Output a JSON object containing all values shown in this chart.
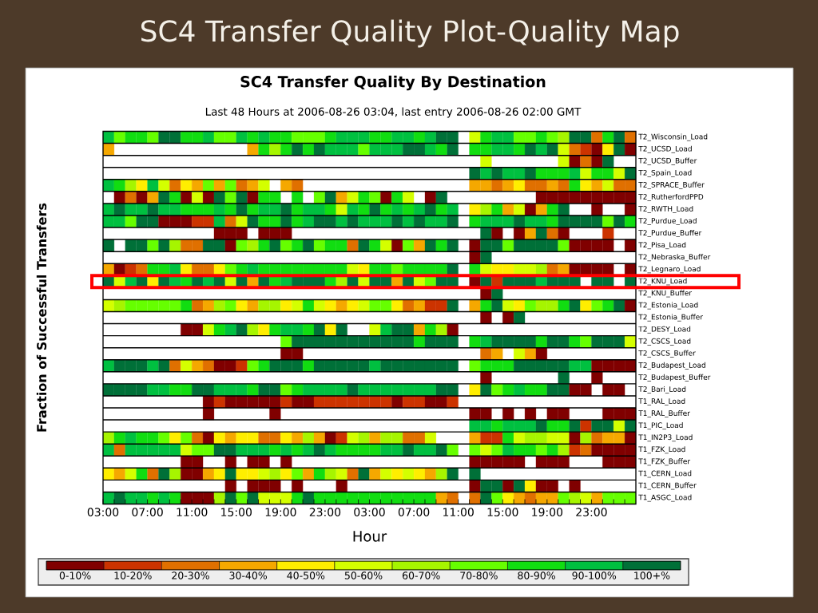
{
  "chart_data": {
    "type": "heatmap",
    "title": "SC4 Transfer Quality Plot-Quality Map",
    "subtitle": "SC4 Transfer Quality By Destination",
    "annotations": [
      "Last 48 Hours at 2006-08-26 03:04, last entry 2006-08-26 02:00 GMT"
    ],
    "xlabel": "Hour",
    "ylabel": "Fraction of Successful Transfers",
    "x": [
      "2006-08-24T03:30",
      "2006-08-24T04:30",
      "2006-08-24T05:30",
      "2006-08-24T06:30",
      "2006-08-24T07:30",
      "2006-08-24T08:30",
      "2006-08-24T09:30",
      "2006-08-24T10:30",
      "2006-08-24T11:30",
      "2006-08-24T12:30",
      "2006-08-24T13:30",
      "2006-08-24T14:30",
      "2006-08-24T15:30",
      "2006-08-24T16:30",
      "2006-08-24T17:30",
      "2006-08-24T18:30",
      "2006-08-24T19:30",
      "2006-08-24T20:30",
      "2006-08-24T21:30",
      "2006-08-24T22:30",
      "2006-08-24T23:30",
      "2006-08-25T00:30",
      "2006-08-25T01:30",
      "2006-08-25T02:30",
      "2006-08-25T03:30",
      "2006-08-25T04:30",
      "2006-08-25T05:30",
      "2006-08-25T06:30",
      "2006-08-25T07:30",
      "2006-08-25T08:30",
      "2006-08-25T09:30",
      "2006-08-25T10:30",
      "2006-08-25T11:30",
      "2006-08-25T12:30",
      "2006-08-25T13:30",
      "2006-08-25T14:30",
      "2006-08-25T15:30",
      "2006-08-25T16:30",
      "2006-08-25T17:30",
      "2006-08-25T18:30",
      "2006-08-25T19:30",
      "2006-08-25T20:30",
      "2006-08-25T21:30",
      "2006-08-25T22:30",
      "2006-08-25T23:30",
      "2006-08-26T00:30",
      "2006-08-26T01:30",
      "2006-08-26T02:30"
    ],
    "xlim": [
      "2006-08-24T03:00",
      "2006-08-26T03:00"
    ],
    "xticks": [
      {
        "value": "2006-08-24T03:00",
        "label": "03:00"
      },
      {
        "value": "2006-08-24T04:00",
        "label": null
      },
      {
        "value": "2006-08-24T05:00",
        "label": null
      },
      {
        "value": "2006-08-24T06:00",
        "label": null
      },
      {
        "value": "2006-08-24T07:00",
        "label": "07:00"
      },
      {
        "value": "2006-08-24T08:00",
        "label": null
      },
      {
        "value": "2006-08-24T09:00",
        "label": null
      },
      {
        "value": "2006-08-24T10:00",
        "label": null
      },
      {
        "value": "2006-08-24T11:00",
        "label": "11:00"
      },
      {
        "value": "2006-08-24T12:00",
        "label": null
      },
      {
        "value": "2006-08-24T13:00",
        "label": null
      },
      {
        "value": "2006-08-24T14:00",
        "label": null
      },
      {
        "value": "2006-08-24T15:00",
        "label": "15:00"
      },
      {
        "value": "2006-08-24T16:00",
        "label": null
      },
      {
        "value": "2006-08-24T17:00",
        "label": null
      },
      {
        "value": "2006-08-24T18:00",
        "label": null
      },
      {
        "value": "2006-08-24T19:00",
        "label": "19:00"
      },
      {
        "value": "2006-08-24T20:00",
        "label": null
      },
      {
        "value": "2006-08-24T21:00",
        "label": null
      },
      {
        "value": "2006-08-24T22:00",
        "label": null
      },
      {
        "value": "2006-08-24T23:00",
        "label": "23:00"
      },
      {
        "value": "2006-08-25T00:00",
        "label": null
      },
      {
        "value": "2006-08-25T01:00",
        "label": null
      },
      {
        "value": "2006-08-25T02:00",
        "label": null
      },
      {
        "value": "2006-08-25T03:00",
        "label": "03:00"
      },
      {
        "value": "2006-08-25T04:00",
        "label": null
      },
      {
        "value": "2006-08-25T05:00",
        "label": null
      },
      {
        "value": "2006-08-25T06:00",
        "label": null
      },
      {
        "value": "2006-08-25T07:00",
        "label": "07:00"
      },
      {
        "value": "2006-08-25T08:00",
        "label": null
      },
      {
        "value": "2006-08-25T09:00",
        "label": null
      },
      {
        "value": "2006-08-25T10:00",
        "label": null
      },
      {
        "value": "2006-08-25T11:00",
        "label": "11:00"
      },
      {
        "value": "2006-08-25T12:00",
        "label": null
      },
      {
        "value": "2006-08-25T13:00",
        "label": null
      },
      {
        "value": "2006-08-25T14:00",
        "label": null
      },
      {
        "value": "2006-08-25T15:00",
        "label": "15:00"
      },
      {
        "value": "2006-08-25T16:00",
        "label": null
      },
      {
        "value": "2006-08-25T17:00",
        "label": null
      },
      {
        "value": "2006-08-25T18:00",
        "label": null
      },
      {
        "value": "2006-08-25T19:00",
        "label": "19:00"
      },
      {
        "value": "2006-08-25T20:00",
        "label": null
      },
      {
        "value": "2006-08-25T21:00",
        "label": null
      },
      {
        "value": "2006-08-25T22:00",
        "label": null
      },
      {
        "value": "2006-08-25T23:00",
        "label": "23:00"
      },
      {
        "value": "2006-08-26T00:00",
        "label": null
      },
      {
        "value": "2006-08-26T01:00",
        "label": null
      },
      {
        "value": "2006-08-26T02:00",
        "label": null
      }
    ],
    "y_categories": [
      "T2_Wisconsin_Load",
      "T2_UCSD_Load",
      "T2_UCSD_Buffer",
      "T2_Spain_Load",
      "T2_SPRACE_Buffer",
      "T2_RutherfordPPD",
      "T2_RWTH_Load",
      "T2_Purdue_Load",
      "T2_Purdue_Buffer",
      "T2_Pisa_Load",
      "T2_Nebraska_Buffer",
      "T2_Legnaro_Load",
      "T2_KNU_Load",
      "T2_KNU_Buffer",
      "T2_Estonia_Load",
      "T2_Estonia_Buffer",
      "T2_DESY_Load",
      "T2_CSCS_Load",
      "T2_CSCS_Buffer",
      "T2_Budapest_Load",
      "T2_Budapest_Buffer",
      "T2_Bari_Load",
      "T1_RAL_Load",
      "T1_RAL_Buffer",
      "T1_PIC_Load",
      "T1_IN2P3_Load",
      "T1_FZK_Load",
      "T1_FZK_Buffer",
      "T1_CERN_Load",
      "T1_CERN_Buffer",
      "T1_ASGC_Load"
    ],
    "cells": [
      [
        95,
        75,
        85,
        85,
        75,
        105,
        105,
        85,
        85,
        95,
        75,
        75,
        95,
        85,
        95,
        85,
        85,
        75,
        75,
        75,
        85,
        95,
        95,
        95,
        85,
        85,
        95,
        95,
        85,
        95,
        105,
        105,
        null,
        55,
        85,
        95,
        95,
        75,
        75,
        85,
        75,
        65,
        105,
        105,
        25,
        85,
        105,
        25
      ],
      [
        35,
        null,
        null,
        null,
        null,
        null,
        null,
        null,
        null,
        null,
        null,
        null,
        null,
        35,
        85,
        65,
        85,
        105,
        85,
        105,
        95,
        95,
        95,
        75,
        95,
        95,
        95,
        105,
        105,
        95,
        85,
        105,
        null,
        85,
        85,
        95,
        95,
        85,
        105,
        95,
        105,
        55,
        25,
        15,
        5,
        45,
        105,
        5
      ],
      [
        null,
        null,
        null,
        null,
        null,
        null,
        null,
        null,
        null,
        null,
        null,
        null,
        null,
        null,
        null,
        null,
        null,
        null,
        null,
        null,
        null,
        null,
        null,
        null,
        null,
        null,
        null,
        null,
        null,
        null,
        null,
        null,
        null,
        null,
        55,
        null,
        null,
        null,
        null,
        null,
        null,
        55,
        5,
        25,
        5,
        105,
        null,
        null
      ],
      [
        null,
        null,
        null,
        null,
        null,
        null,
        null,
        null,
        null,
        null,
        null,
        null,
        null,
        null,
        null,
        null,
        null,
        null,
        null,
        null,
        null,
        null,
        null,
        null,
        null,
        null,
        null,
        null,
        null,
        null,
        null,
        null,
        null,
        105,
        95,
        105,
        95,
        95,
        105,
        85,
        85,
        85,
        95,
        55,
        85,
        85,
        55,
        105
      ],
      [
        95,
        85,
        65,
        45,
        95,
        55,
        25,
        45,
        35,
        75,
        35,
        75,
        25,
        35,
        55,
        null,
        35,
        25,
        null,
        null,
        null,
        null,
        null,
        null,
        null,
        null,
        null,
        null,
        null,
        null,
        null,
        null,
        null,
        35,
        35,
        25,
        35,
        45,
        25,
        25,
        35,
        25,
        85,
        45,
        35,
        55,
        25,
        25
      ],
      [
        null,
        5,
        25,
        5,
        35,
        105,
        85,
        5,
        55,
        5,
        105,
        75,
        105,
        5,
        85,
        85,
        null,
        85,
        null,
        75,
        105,
        35,
        55,
        85,
        75,
        5,
        85,
        55,
        null,
        5,
        105,
        null,
        null,
        null,
        null,
        null,
        null,
        null,
        null,
        5,
        5,
        5,
        5,
        5,
        5,
        5,
        5,
        5
      ],
      [
        95,
        105,
        95,
        95,
        105,
        95,
        95,
        85,
        85,
        85,
        95,
        85,
        105,
        85,
        95,
        95,
        105,
        85,
        95,
        95,
        85,
        55,
        95,
        85,
        105,
        85,
        95,
        85,
        95,
        105,
        85,
        95,
        null,
        45,
        65,
        85,
        35,
        55,
        5,
        35,
        85,
        105,
        null,
        null,
        5,
        null,
        null,
        5
      ],
      [
        95,
        95,
        75,
        105,
        105,
        5,
        5,
        5,
        15,
        15,
        95,
        25,
        55,
        105,
        85,
        85,
        105,
        85,
        95,
        105,
        105,
        95,
        105,
        95,
        95,
        95,
        105,
        95,
        105,
        95,
        95,
        105,
        null,
        85,
        95,
        95,
        95,
        105,
        95,
        95,
        85,
        105,
        105,
        105,
        105,
        75,
        105,
        85
      ],
      [
        null,
        null,
        null,
        null,
        null,
        null,
        null,
        null,
        null,
        null,
        5,
        5,
        5,
        null,
        5,
        5,
        5,
        null,
        null,
        null,
        null,
        null,
        null,
        null,
        null,
        null,
        null,
        null,
        null,
        null,
        null,
        null,
        null,
        null,
        105,
        5,
        null,
        5,
        35,
        105,
        25,
        5,
        null,
        null,
        null,
        15,
        null,
        null
      ],
      [
        105,
        null,
        105,
        105,
        75,
        105,
        65,
        25,
        25,
        105,
        105,
        5,
        75,
        65,
        85,
        105,
        75,
        85,
        105,
        75,
        85,
        85,
        25,
        105,
        85,
        55,
        5,
        75,
        35,
        105,
        85,
        105,
        null,
        5,
        105,
        105,
        75,
        105,
        105,
        105,
        105,
        75,
        5,
        5,
        5,
        5,
        null,
        5
      ],
      [
        null,
        null,
        null,
        null,
        null,
        null,
        null,
        null,
        null,
        null,
        null,
        null,
        null,
        null,
        null,
        null,
        null,
        null,
        null,
        null,
        null,
        null,
        null,
        null,
        null,
        null,
        null,
        null,
        null,
        null,
        null,
        null,
        null,
        5,
        105,
        null,
        null,
        null,
        null,
        null,
        null,
        null,
        null,
        null,
        null,
        null,
        null,
        null
      ],
      [
        35,
        5,
        15,
        25,
        85,
        85,
        95,
        45,
        25,
        25,
        45,
        75,
        85,
        95,
        85,
        85,
        85,
        85,
        85,
        85,
        85,
        85,
        55,
        45,
        85,
        85,
        75,
        85,
        85,
        85,
        85,
        105,
        null,
        85,
        55,
        45,
        45,
        55,
        55,
        65,
        25,
        35,
        5,
        5,
        5,
        5,
        null,
        5
      ],
      [
        105,
        55,
        95,
        105,
        45,
        105,
        95,
        85,
        105,
        95,
        105,
        55,
        105,
        35,
        105,
        85,
        95,
        105,
        105,
        105,
        85,
        65,
        105,
        55,
        105,
        105,
        35,
        105,
        55,
        75,
        105,
        105,
        null,
        5,
        105,
        15,
        105,
        105,
        105,
        95,
        105,
        105,
        105,
        null,
        105,
        105,
        null,
        105
      ],
      [
        null,
        null,
        null,
        null,
        null,
        null,
        null,
        null,
        null,
        null,
        null,
        null,
        null,
        null,
        null,
        null,
        null,
        null,
        null,
        null,
        null,
        null,
        null,
        null,
        null,
        null,
        null,
        null,
        null,
        null,
        null,
        null,
        null,
        null,
        5,
        105,
        null,
        null,
        null,
        null,
        null,
        null,
        null,
        null,
        null,
        null,
        null,
        null
      ],
      [
        55,
        65,
        75,
        75,
        75,
        75,
        75,
        85,
        25,
        35,
        65,
        75,
        45,
        35,
        65,
        65,
        45,
        55,
        85,
        55,
        45,
        35,
        45,
        55,
        75,
        75,
        45,
        25,
        35,
        15,
        15,
        105,
        null,
        35,
        85,
        105,
        55,
        45,
        75,
        65,
        65,
        85,
        105,
        45,
        75,
        85,
        105,
        5
      ],
      [
        null,
        null,
        null,
        null,
        null,
        null,
        null,
        null,
        null,
        null,
        null,
        null,
        null,
        null,
        null,
        null,
        null,
        null,
        null,
        null,
        null,
        null,
        null,
        null,
        null,
        null,
        null,
        null,
        null,
        null,
        null,
        null,
        null,
        null,
        5,
        null,
        5,
        105,
        null,
        null,
        null,
        null,
        null,
        null,
        null,
        null,
        null,
        null
      ],
      [
        null,
        null,
        null,
        null,
        null,
        null,
        null,
        5,
        5,
        55,
        85,
        95,
        105,
        65,
        45,
        85,
        95,
        95,
        85,
        105,
        45,
        105,
        null,
        null,
        55,
        95,
        105,
        105,
        35,
        85,
        65,
        5,
        null,
        null,
        null,
        null,
        null,
        null,
        null,
        null,
        null,
        null,
        null,
        null,
        null,
        null,
        null,
        null
      ],
      [
        null,
        null,
        null,
        null,
        null,
        null,
        null,
        null,
        null,
        null,
        null,
        null,
        null,
        null,
        null,
        null,
        75,
        105,
        105,
        105,
        105,
        105,
        105,
        105,
        105,
        105,
        105,
        105,
        85,
        105,
        105,
        105,
        null,
        85,
        95,
        105,
        105,
        105,
        105,
        85,
        105,
        105,
        85,
        75,
        105,
        105,
        105,
        55
      ],
      [
        null,
        null,
        null,
        null,
        null,
        null,
        null,
        null,
        null,
        null,
        null,
        null,
        null,
        null,
        null,
        null,
        5,
        5,
        null,
        null,
        null,
        null,
        null,
        null,
        null,
        null,
        null,
        null,
        null,
        null,
        null,
        null,
        null,
        null,
        25,
        35,
        null,
        55,
        35,
        5,
        null,
        null,
        null,
        null,
        null,
        null,
        null,
        null
      ],
      [
        95,
        105,
        105,
        105,
        95,
        105,
        25,
        55,
        35,
        25,
        5,
        5,
        15,
        75,
        85,
        105,
        105,
        105,
        85,
        105,
        105,
        105,
        105,
        105,
        95,
        105,
        105,
        105,
        105,
        105,
        105,
        105,
        null,
        75,
        85,
        85,
        85,
        105,
        105,
        105,
        105,
        105,
        95,
        95,
        5,
        5,
        5,
        5
      ],
      [
        null,
        null,
        null,
        null,
        null,
        null,
        null,
        null,
        null,
        null,
        null,
        null,
        null,
        null,
        null,
        null,
        null,
        null,
        null,
        null,
        null,
        null,
        null,
        null,
        null,
        null,
        null,
        null,
        null,
        null,
        null,
        null,
        null,
        null,
        5,
        null,
        null,
        null,
        null,
        null,
        null,
        105,
        null,
        null,
        5,
        null,
        null,
        null
      ],
      [
        105,
        105,
        105,
        105,
        95,
        95,
        85,
        85,
        105,
        105,
        95,
        95,
        95,
        85,
        105,
        105,
        75,
        85,
        95,
        95,
        95,
        95,
        105,
        95,
        95,
        95,
        95,
        95,
        95,
        95,
        105,
        105,
        null,
        45,
        105,
        75,
        85,
        95,
        85,
        85,
        105,
        105,
        5,
        5,
        null,
        5,
        5,
        null
      ],
      [
        null,
        null,
        null,
        null,
        null,
        null,
        null,
        null,
        null,
        5,
        15,
        5,
        5,
        5,
        5,
        5,
        15,
        5,
        5,
        15,
        15,
        15,
        15,
        15,
        15,
        15,
        5,
        15,
        15,
        5,
        5,
        15,
        null,
        null,
        null,
        null,
        null,
        null,
        null,
        null,
        null,
        null,
        null,
        null,
        null,
        null,
        null,
        null
      ],
      [
        null,
        null,
        null,
        null,
        null,
        null,
        null,
        null,
        null,
        5,
        null,
        null,
        null,
        null,
        null,
        5,
        null,
        null,
        null,
        null,
        null,
        null,
        null,
        null,
        null,
        null,
        null,
        null,
        null,
        null,
        null,
        null,
        null,
        5,
        5,
        null,
        5,
        null,
        5,
        null,
        5,
        5,
        null,
        null,
        null,
        5,
        5,
        5
      ],
      [
        null,
        null,
        null,
        null,
        null,
        null,
        null,
        null,
        null,
        null,
        null,
        null,
        null,
        null,
        null,
        null,
        null,
        null,
        null,
        null,
        null,
        null,
        null,
        null,
        null,
        null,
        null,
        null,
        null,
        null,
        null,
        null,
        null,
        95,
        95,
        85,
        95,
        95,
        95,
        105,
        85,
        85,
        105,
        15,
        105,
        105,
        55,
        105
      ],
      [
        65,
        85,
        95,
        85,
        85,
        75,
        45,
        75,
        25,
        5,
        45,
        35,
        45,
        45,
        25,
        25,
        45,
        35,
        65,
        35,
        5,
        15,
        55,
        65,
        35,
        65,
        65,
        25,
        25,
        55,
        null,
        null,
        null,
        35,
        15,
        15,
        85,
        55,
        65,
        65,
        55,
        55,
        5,
        65,
        25,
        35,
        35,
        5
      ],
      [
        95,
        25,
        95,
        95,
        95,
        95,
        95,
        55,
        75,
        75,
        105,
        105,
        95,
        95,
        95,
        85,
        95,
        85,
        95,
        105,
        95,
        85,
        85,
        85,
        85,
        95,
        95,
        105,
        95,
        95,
        105,
        75,
        null,
        75,
        55,
        75,
        95,
        85,
        85,
        75,
        85,
        65,
        15,
        25,
        5,
        5,
        5,
        5
      ],
      [
        null,
        null,
        null,
        null,
        null,
        null,
        null,
        5,
        5,
        null,
        null,
        5,
        null,
        5,
        5,
        null,
        5,
        null,
        null,
        null,
        null,
        null,
        null,
        null,
        null,
        null,
        null,
        null,
        null,
        null,
        null,
        null,
        null,
        5,
        5,
        5,
        5,
        5,
        null,
        5,
        5,
        5,
        null,
        null,
        null,
        5,
        5,
        5
      ],
      [
        45,
        35,
        55,
        85,
        25,
        105,
        65,
        5,
        5,
        35,
        45,
        105,
        45,
        45,
        55,
        65,
        45,
        75,
        35,
        85,
        65,
        55,
        25,
        105,
        35,
        55,
        45,
        55,
        45,
        35,
        65,
        105,
        null,
        105,
        null,
        null,
        null,
        null,
        null,
        null,
        null,
        null,
        null,
        null,
        null,
        null,
        null,
        null
      ],
      [
        null,
        null,
        null,
        null,
        null,
        null,
        null,
        null,
        null,
        null,
        null,
        5,
        null,
        5,
        5,
        5,
        null,
        5,
        null,
        null,
        null,
        5,
        null,
        null,
        null,
        null,
        null,
        null,
        null,
        null,
        null,
        null,
        null,
        5,
        105,
        105,
        5,
        105,
        45,
        5,
        5,
        null,
        5,
        null,
        null,
        null,
        null,
        null
      ],
      [
        95,
        105,
        95,
        95,
        85,
        95,
        85,
        5,
        5,
        5,
        65,
        105,
        75,
        105,
        55,
        55,
        55,
        85,
        105,
        85,
        85,
        85,
        85,
        85,
        85,
        85,
        85,
        85,
        85,
        85,
        35,
        25,
        null,
        25,
        105,
        75,
        45,
        35,
        25,
        35,
        35,
        75,
        65,
        55,
        35,
        75,
        75,
        75
      ]
    ],
    "clim": [
      0,
      110
    ],
    "cticks": [
      {
        "value": 5,
        "label": "0-10%"
      },
      {
        "value": 15,
        "label": "10-20%"
      },
      {
        "value": 25,
        "label": "20-30%"
      },
      {
        "value": 35,
        "label": "30-40%"
      },
      {
        "value": 45,
        "label": "40-50%"
      },
      {
        "value": 55,
        "label": "50-60%"
      },
      {
        "value": 65,
        "label": "60-70%"
      },
      {
        "value": 75,
        "label": "70-80%"
      },
      {
        "value": 85,
        "label": "80-90%"
      },
      {
        "value": 95,
        "label": "90-100%"
      },
      {
        "value": 105,
        "label": "100+%"
      }
    ],
    "colors": [
      "#800000",
      "#cc3300",
      "#e07000",
      "#f5a800",
      "#ffee00",
      "#d4ff00",
      "#a6f500",
      "#66ff00",
      "#11dd11",
      "#00c040",
      "#007038"
    ]
  }
}
